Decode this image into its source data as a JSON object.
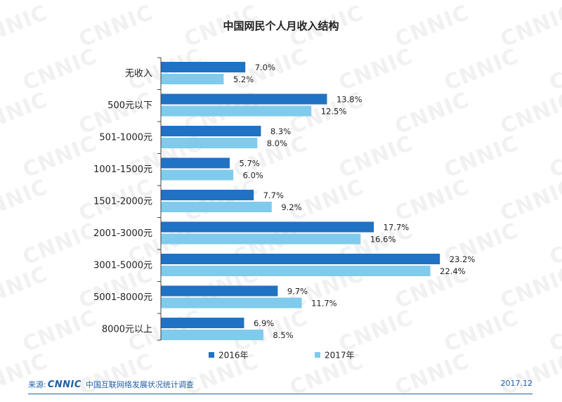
{
  "chart_data": {
    "type": "bar",
    "orientation": "horizontal",
    "title": "中国网民个人月收入结构",
    "categories": [
      "无收入",
      "500元以下",
      "501-1000元",
      "1001-1500元",
      "1501-2000元",
      "2001-3000元",
      "3001-5000元",
      "5001-8000元",
      "8000元以上"
    ],
    "series": [
      {
        "name": "2016年",
        "color": "#1f72c4",
        "values": [
          7.0,
          13.8,
          8.3,
          5.7,
          7.7,
          17.7,
          23.2,
          9.7,
          6.9
        ],
        "labels": [
          "7.0%",
          "13.8%",
          "8.3%",
          "5.7%",
          "7.7%",
          "17.7%",
          "23.2%",
          "9.7%",
          "6.9%"
        ]
      },
      {
        "name": "2017年",
        "color": "#7fcbee",
        "values": [
          5.2,
          12.5,
          8.0,
          6.0,
          9.2,
          16.6,
          22.4,
          11.7,
          8.5
        ],
        "labels": [
          "5.2%",
          "12.5%",
          "8.0%",
          "6.0%",
          "9.2%",
          "16.6%",
          "22.4%",
          "11.7%",
          "8.5%"
        ]
      }
    ],
    "xlim": [
      0,
      25
    ],
    "grid": false,
    "legend_position": "bottom"
  },
  "watermark": "CNNIC",
  "footer": {
    "source_prefix": "来源:",
    "logo_text": "CNNIC",
    "report_name": "中国互联网络发展状况统计调查",
    "date": "2017.12"
  }
}
